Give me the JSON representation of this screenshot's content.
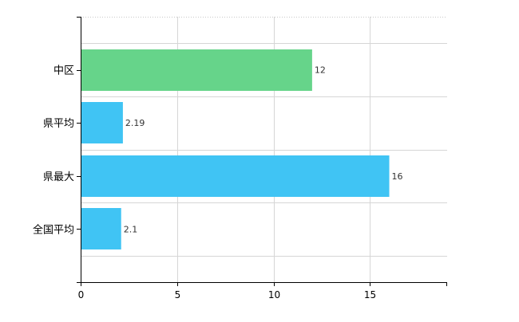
{
  "chart_data": {
    "type": "bar",
    "orientation": "horizontal",
    "categories": [
      "中区",
      "県平均",
      "県最大",
      "全国平均"
    ],
    "values": [
      12,
      2.19,
      16,
      2.1
    ],
    "value_labels": [
      "12",
      "2.19",
      "16",
      "2.1"
    ],
    "bar_colors": [
      "#66d48a",
      "#40c4f4",
      "#40c4f4",
      "#40c4f4"
    ],
    "xlim": [
      0,
      19
    ],
    "x_ticks": [
      0,
      5,
      10,
      15
    ],
    "x_tick_labels": [
      "0",
      "5",
      "10",
      "15"
    ],
    "grid": true,
    "title": "",
    "xlabel": "",
    "ylabel": ""
  }
}
